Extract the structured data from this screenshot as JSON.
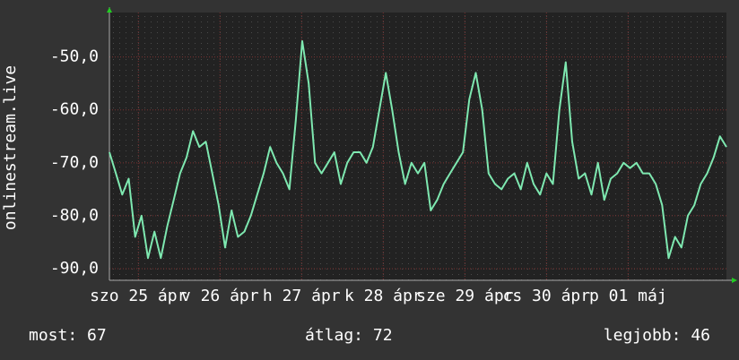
{
  "chart_data": {
    "type": "line",
    "y_label": "onlinestream.live",
    "ylim": [
      -92.2,
      -41.6
    ],
    "yticks": [
      {
        "value": -50,
        "label": "-50,0"
      },
      {
        "value": -60,
        "label": "-60,0"
      },
      {
        "value": -70,
        "label": "-70,0"
      },
      {
        "value": -80,
        "label": "-80,0"
      },
      {
        "value": -90,
        "label": "-90,0"
      }
    ],
    "xlim": [
      0,
      96
    ],
    "xticks": [
      {
        "value": 4.5,
        "label": "szo 25 ápr"
      },
      {
        "value": 17.2,
        "label": "v 26 ápr"
      },
      {
        "value": 29.9,
        "label": "h 27 ápr"
      },
      {
        "value": 42.6,
        "label": "k 28 ápr"
      },
      {
        "value": 55.3,
        "label": "sze 29 ápr"
      },
      {
        "value": 68,
        "label": "cs 30 ápr"
      },
      {
        "value": 80.7,
        "label": "p 01 máj"
      }
    ],
    "grid": true,
    "color": "#7ee8b0",
    "values": [
      -68,
      -72,
      -76,
      -73,
      -84,
      -80,
      -88,
      -83,
      -88,
      -82,
      -77,
      -72,
      -69,
      -64,
      -67,
      -66,
      -72,
      -78,
      -86,
      -79,
      -84,
      -83,
      -80,
      -76,
      -72,
      -67,
      -70,
      -72,
      -75,
      -62,
      -47,
      -55,
      -70,
      -72,
      -70,
      -68,
      -74,
      -70,
      -68,
      -68,
      -70,
      -67,
      -60,
      -53,
      -60,
      -68,
      -74,
      -70,
      -72,
      -70,
      -79,
      -77,
      -74,
      -72,
      -70,
      -68,
      -58,
      -53,
      -60,
      -72,
      -74,
      -75,
      -73,
      -72,
      -75,
      -70,
      -74,
      -76,
      -72,
      -74,
      -60,
      -51,
      -66,
      -73,
      -72,
      -76,
      -70,
      -77,
      -73,
      -72,
      -70,
      -71,
      -70,
      -72,
      -72,
      -74,
      -78,
      -88,
      -84,
      -86,
      -80,
      -78,
      -74,
      -72,
      -69,
      -65,
      -67
    ],
    "footer": [
      {
        "label": "most:",
        "value": 67
      },
      {
        "label": "átlag:",
        "value": 72
      },
      {
        "label": "legjobb:",
        "value": 46
      }
    ]
  }
}
